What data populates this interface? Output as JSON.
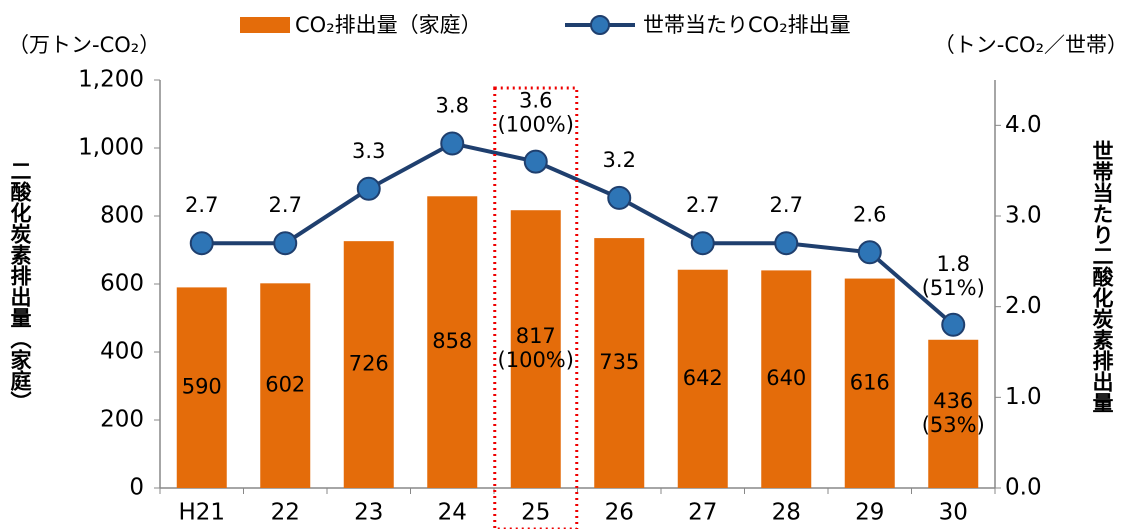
{
  "chart_data": {
    "type": "bar_line",
    "categories": [
      "H21",
      "22",
      "23",
      "24",
      "25",
      "26",
      "27",
      "28",
      "29",
      "30"
    ],
    "series": [
      {
        "name": "CO₂排出量（家庭）",
        "type": "bar",
        "color": "#e46c0a",
        "values": [
          590,
          602,
          726,
          858,
          817,
          735,
          642,
          640,
          616,
          436
        ],
        "value_labels": [
          "590",
          "602",
          "726",
          "858",
          [
            "817",
            "(100%)"
          ],
          "735",
          "642",
          "640",
          "616",
          [
            "436",
            "(53%)"
          ]
        ]
      },
      {
        "name": "世帯当たりCO₂排出量",
        "type": "line",
        "axis": "y2",
        "color": "#1f3f6e",
        "marker_color": "#2e75b6",
        "values": [
          2.7,
          2.7,
          3.3,
          3.8,
          3.6,
          3.2,
          2.7,
          2.7,
          2.6,
          1.8
        ],
        "value_labels": [
          "2.7",
          "2.7",
          "3.3",
          "3.8",
          [
            "3.6",
            "(100%)"
          ],
          "3.2",
          "2.7",
          "2.7",
          "2.6",
          [
            "1.8",
            "(51%)"
          ]
        ]
      }
    ],
    "y_unit": "（万トン-CO₂）",
    "y2_unit": "（トン-CO₂／世帯）",
    "ylabel": "二酸化炭素排出量（家庭）",
    "y2label": "世帯当たり二酸化炭素排出量",
    "ylim": [
      0,
      1200
    ],
    "yticks": [
      0,
      200,
      400,
      600,
      800,
      {
        "value": 1000,
        "label": "1,000"
      },
      {
        "value": 1200,
        "label": "1,200"
      }
    ],
    "y2lim": [
      0,
      4.5
    ],
    "y2ticks": [
      {
        "value": 0,
        "label": "0.0"
      },
      {
        "value": 1,
        "label": "1.0"
      },
      {
        "value": 2,
        "label": "2.0"
      },
      {
        "value": 3,
        "label": "3.0"
      },
      {
        "value": 4,
        "label": "4.0"
      }
    ],
    "highlight": "25"
  }
}
